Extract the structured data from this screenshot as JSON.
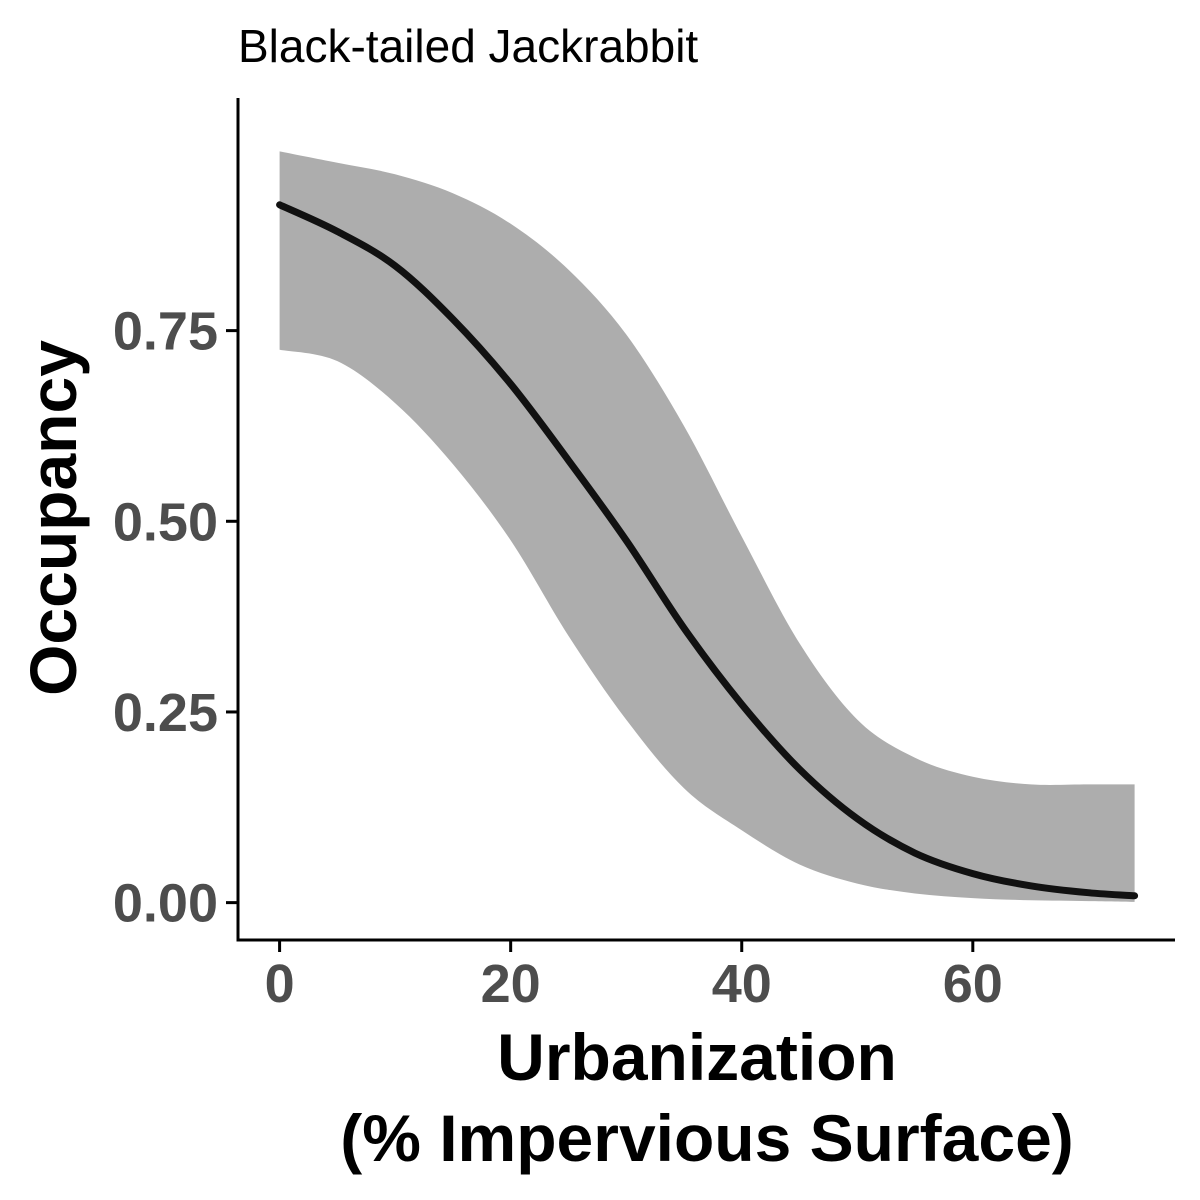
{
  "chart_data": {
    "type": "line",
    "title": "Black-tailed Jackrabbit",
    "xlabel_lines": [
      "Urbanization",
      "(% Impervious Surface)"
    ],
    "ylabel": "Occupancy",
    "x_ticks": [
      0,
      20,
      40,
      60
    ],
    "x_tick_labels": [
      "0",
      "20",
      "40",
      "60"
    ],
    "y_ticks": [
      0,
      0.25,
      0.5,
      0.75
    ],
    "y_tick_labels": [
      "0.00",
      "0.25",
      "0.50",
      "0.75"
    ],
    "xlim": [
      -3.6,
      77.5
    ],
    "ylim": [
      -0.049,
      1.055
    ],
    "grid": false,
    "legend": "none",
    "colors": {
      "line": "#111111",
      "ribbon": "#adadad",
      "axis": "#000000",
      "tick_text": "#4d4d4d"
    },
    "series": [
      {
        "x": [
          0,
          5,
          10,
          15,
          20,
          25,
          30,
          35,
          40,
          45,
          50,
          55,
          60,
          65,
          70,
          74
        ],
        "y": [
          0.915,
          0.88,
          0.835,
          0.765,
          0.68,
          0.58,
          0.475,
          0.36,
          0.26,
          0.175,
          0.11,
          0.065,
          0.038,
          0.022,
          0.013,
          0.009
        ],
        "lower": [
          0.725,
          0.71,
          0.655,
          0.575,
          0.475,
          0.35,
          0.24,
          0.15,
          0.095,
          0.05,
          0.025,
          0.012,
          0.006,
          0.003,
          0.002,
          0.001
        ],
        "upper": [
          0.985,
          0.97,
          0.955,
          0.93,
          0.89,
          0.83,
          0.745,
          0.625,
          0.48,
          0.34,
          0.24,
          0.19,
          0.165,
          0.155,
          0.155,
          0.155
        ]
      }
    ]
  }
}
